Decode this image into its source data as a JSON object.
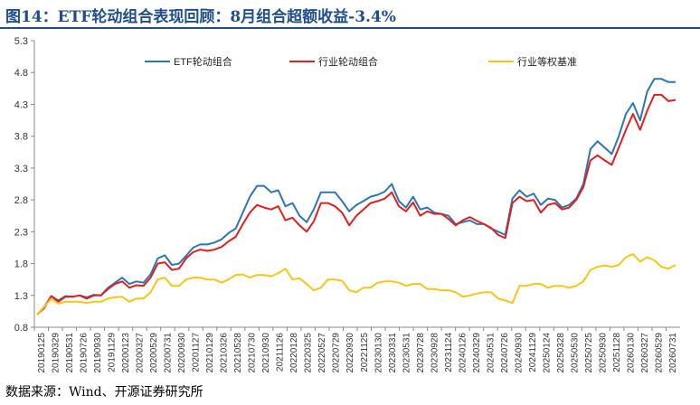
{
  "chart_data": {
    "type": "line",
    "title": "图14：ETF轮动组合表现回顾：8月组合超额收益-3.4%",
    "source": "数据来源：Wind、开源证券研究所",
    "ylim": [
      0.8,
      5.3
    ],
    "yticks": [
      "0.8",
      "1.3",
      "1.8",
      "2.3",
      "2.8",
      "3.3",
      "3.8",
      "4.3",
      "4.8",
      "5.3"
    ],
    "grid": false,
    "legend_position": "top",
    "x_tick_labels": [
      "20190125",
      "20190329",
      "20190531",
      "20190726",
      "20190930",
      "20191129",
      "20200123",
      "20200327",
      "20200529",
      "20200731",
      "20200930",
      "20201127",
      "20210129",
      "20210326",
      "20210528",
      "20210730",
      "20210930",
      "20211126",
      "20220128",
      "20220325",
      "20220527",
      "20220729",
      "20220930",
      "20221125",
      "20230130",
      "20230331",
      "20230531",
      "20230728",
      "20230928",
      "20231124",
      "20240126",
      "20240329",
      "20240531",
      "20240726",
      "20240930",
      "20241129",
      "20250124",
      "20250328",
      "20250530",
      "20250725",
      "20250930",
      "20251128",
      "20260130",
      "20260327",
      "20260529",
      "20260731"
    ],
    "series": [
      {
        "name": "ETF轮动组合",
        "color": "#2e75b6",
        "values": [
          1.0,
          1.12,
          1.29,
          1.22,
          1.29,
          1.28,
          1.3,
          1.27,
          1.31,
          1.3,
          1.42,
          1.5,
          1.58,
          1.48,
          1.52,
          1.5,
          1.63,
          1.88,
          1.93,
          1.78,
          1.8,
          1.92,
          2.05,
          2.1,
          2.1,
          2.13,
          2.18,
          2.28,
          2.35,
          2.6,
          2.85,
          3.02,
          3.02,
          2.92,
          2.95,
          2.7,
          2.75,
          2.55,
          2.45,
          2.65,
          2.92,
          2.92,
          2.92,
          2.78,
          2.62,
          2.72,
          2.78,
          2.85,
          2.88,
          2.93,
          3.05,
          2.78,
          2.68,
          2.85,
          2.65,
          2.68,
          2.6,
          2.58,
          2.55,
          2.42,
          2.45,
          2.48,
          2.42,
          2.42,
          2.35,
          2.3,
          2.25,
          2.82,
          2.95,
          2.85,
          2.9,
          2.72,
          2.82,
          2.8,
          2.68,
          2.72,
          2.82,
          3.05,
          3.6,
          3.72,
          3.62,
          3.52,
          3.8,
          4.15,
          4.32,
          4.05,
          4.5,
          4.7,
          4.7,
          4.65,
          4.65
        ]
      },
      {
        "name": "行业轮动组合",
        "color": "#e0201f",
        "values": [
          1.0,
          1.1,
          1.29,
          1.2,
          1.28,
          1.28,
          1.3,
          1.25,
          1.3,
          1.3,
          1.4,
          1.48,
          1.52,
          1.42,
          1.46,
          1.45,
          1.58,
          1.8,
          1.82,
          1.7,
          1.72,
          1.88,
          1.98,
          2.02,
          2.0,
          2.02,
          2.06,
          2.15,
          2.22,
          2.42,
          2.6,
          2.72,
          2.68,
          2.65,
          2.7,
          2.48,
          2.52,
          2.4,
          2.3,
          2.46,
          2.75,
          2.75,
          2.7,
          2.6,
          2.4,
          2.55,
          2.65,
          2.75,
          2.78,
          2.82,
          2.92,
          2.7,
          2.62,
          2.76,
          2.55,
          2.62,
          2.58,
          2.58,
          2.5,
          2.4,
          2.48,
          2.53,
          2.47,
          2.42,
          2.36,
          2.25,
          2.2,
          2.75,
          2.85,
          2.78,
          2.8,
          2.6,
          2.72,
          2.75,
          2.65,
          2.68,
          2.8,
          3.0,
          3.42,
          3.5,
          3.42,
          3.35,
          3.62,
          3.9,
          4.15,
          3.9,
          4.2,
          4.45,
          4.45,
          4.35,
          4.37
        ]
      },
      {
        "name": "行业等权基准",
        "color": "#f5c518",
        "values": [
          1.0,
          1.12,
          1.25,
          1.17,
          1.2,
          1.2,
          1.2,
          1.18,
          1.2,
          1.2,
          1.25,
          1.27,
          1.28,
          1.2,
          1.25,
          1.25,
          1.35,
          1.55,
          1.58,
          1.45,
          1.45,
          1.55,
          1.58,
          1.58,
          1.55,
          1.55,
          1.5,
          1.55,
          1.62,
          1.63,
          1.58,
          1.62,
          1.62,
          1.6,
          1.65,
          1.72,
          1.55,
          1.57,
          1.48,
          1.38,
          1.42,
          1.55,
          1.55,
          1.53,
          1.38,
          1.35,
          1.42,
          1.42,
          1.5,
          1.52,
          1.52,
          1.5,
          1.45,
          1.48,
          1.48,
          1.4,
          1.4,
          1.38,
          1.38,
          1.35,
          1.28,
          1.3,
          1.33,
          1.35,
          1.35,
          1.25,
          1.22,
          1.18,
          1.45,
          1.45,
          1.48,
          1.48,
          1.42,
          1.45,
          1.45,
          1.42,
          1.45,
          1.52,
          1.7,
          1.75,
          1.77,
          1.75,
          1.78,
          1.9,
          1.95,
          1.83,
          1.9,
          1.85,
          1.75,
          1.72,
          1.78
        ]
      }
    ]
  }
}
